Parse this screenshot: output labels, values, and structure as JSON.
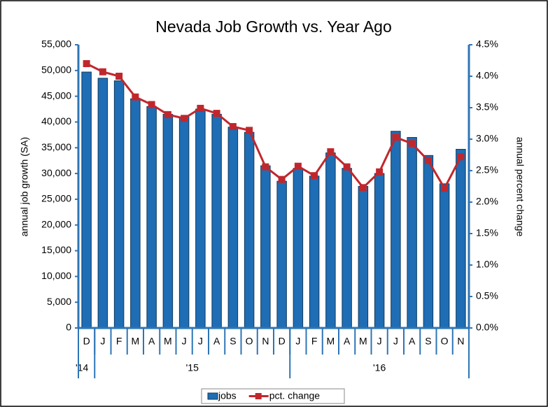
{
  "chart_data": {
    "type": "bar_line",
    "title": "Nevada Job Growth vs. Year Ago",
    "y_label": "annual job growth (SA)",
    "y2_label": "annual percent change",
    "categories": [
      "D",
      "J",
      "F",
      "M",
      "A",
      "M",
      "J",
      "J",
      "A",
      "S",
      "O",
      "N",
      "D",
      "J",
      "F",
      "M",
      "A",
      "M",
      "J",
      "J",
      "A",
      "S",
      "O",
      "N"
    ],
    "years": [
      "'14",
      "'15",
      "'16"
    ],
    "series": [
      {
        "name": "jobs",
        "type": "bar",
        "color": "#1f6db4",
        "values": [
          49700,
          48500,
          48000,
          44500,
          43000,
          41500,
          41000,
          42500,
          41500,
          39000,
          38000,
          31500,
          28500,
          31000,
          29500,
          34000,
          31000,
          27500,
          30000,
          38200,
          37000,
          33500,
          28000,
          34700
        ]
      },
      {
        "name": "pct. change",
        "type": "line",
        "axis": "y2",
        "color": "#c0272d",
        "values": [
          4.2,
          4.07,
          4.0,
          3.67,
          3.55,
          3.39,
          3.33,
          3.49,
          3.41,
          3.2,
          3.14,
          2.56,
          2.36,
          2.57,
          2.42,
          2.8,
          2.56,
          2.23,
          2.48,
          3.03,
          2.93,
          2.66,
          2.22,
          2.72
        ]
      }
    ],
    "ylim": [
      0,
      55000
    ],
    "yticks": [
      0,
      {
        "value": 5000,
        "label": "5,000"
      },
      {
        "value": 10000,
        "label": "10,000"
      },
      {
        "value": 15000,
        "label": "15,000"
      },
      {
        "value": 20000,
        "label": "20,000"
      },
      {
        "value": 25000,
        "label": "25,000"
      },
      {
        "value": 30000,
        "label": "30,000"
      },
      {
        "value": 35000,
        "label": "35,000"
      },
      {
        "value": 40000,
        "label": "40,000"
      },
      {
        "value": 45000,
        "label": "45,000"
      },
      {
        "value": 50000,
        "label": "50,000"
      },
      {
        "value": 55000,
        "label": "55,000"
      }
    ],
    "y2lim": [
      0,
      4.5
    ],
    "y2ticks": [
      {
        "value": 0,
        "label": "0.0%"
      },
      {
        "value": 0.5,
        "label": "0.5%"
      },
      {
        "value": 1,
        "label": "1.0%"
      },
      {
        "value": 1.5,
        "label": "1.5%"
      },
      {
        "value": 2,
        "label": "2.0%"
      },
      {
        "value": 2.5,
        "label": "2.5%"
      },
      {
        "value": 3,
        "label": "3.0%"
      },
      {
        "value": 3.5,
        "label": "3.5%"
      },
      {
        "value": 4,
        "label": "4.0%"
      },
      {
        "value": 4.5,
        "label": "4.5%"
      }
    ],
    "legend": "bottom",
    "axis_color": "#2e75b6"
  }
}
